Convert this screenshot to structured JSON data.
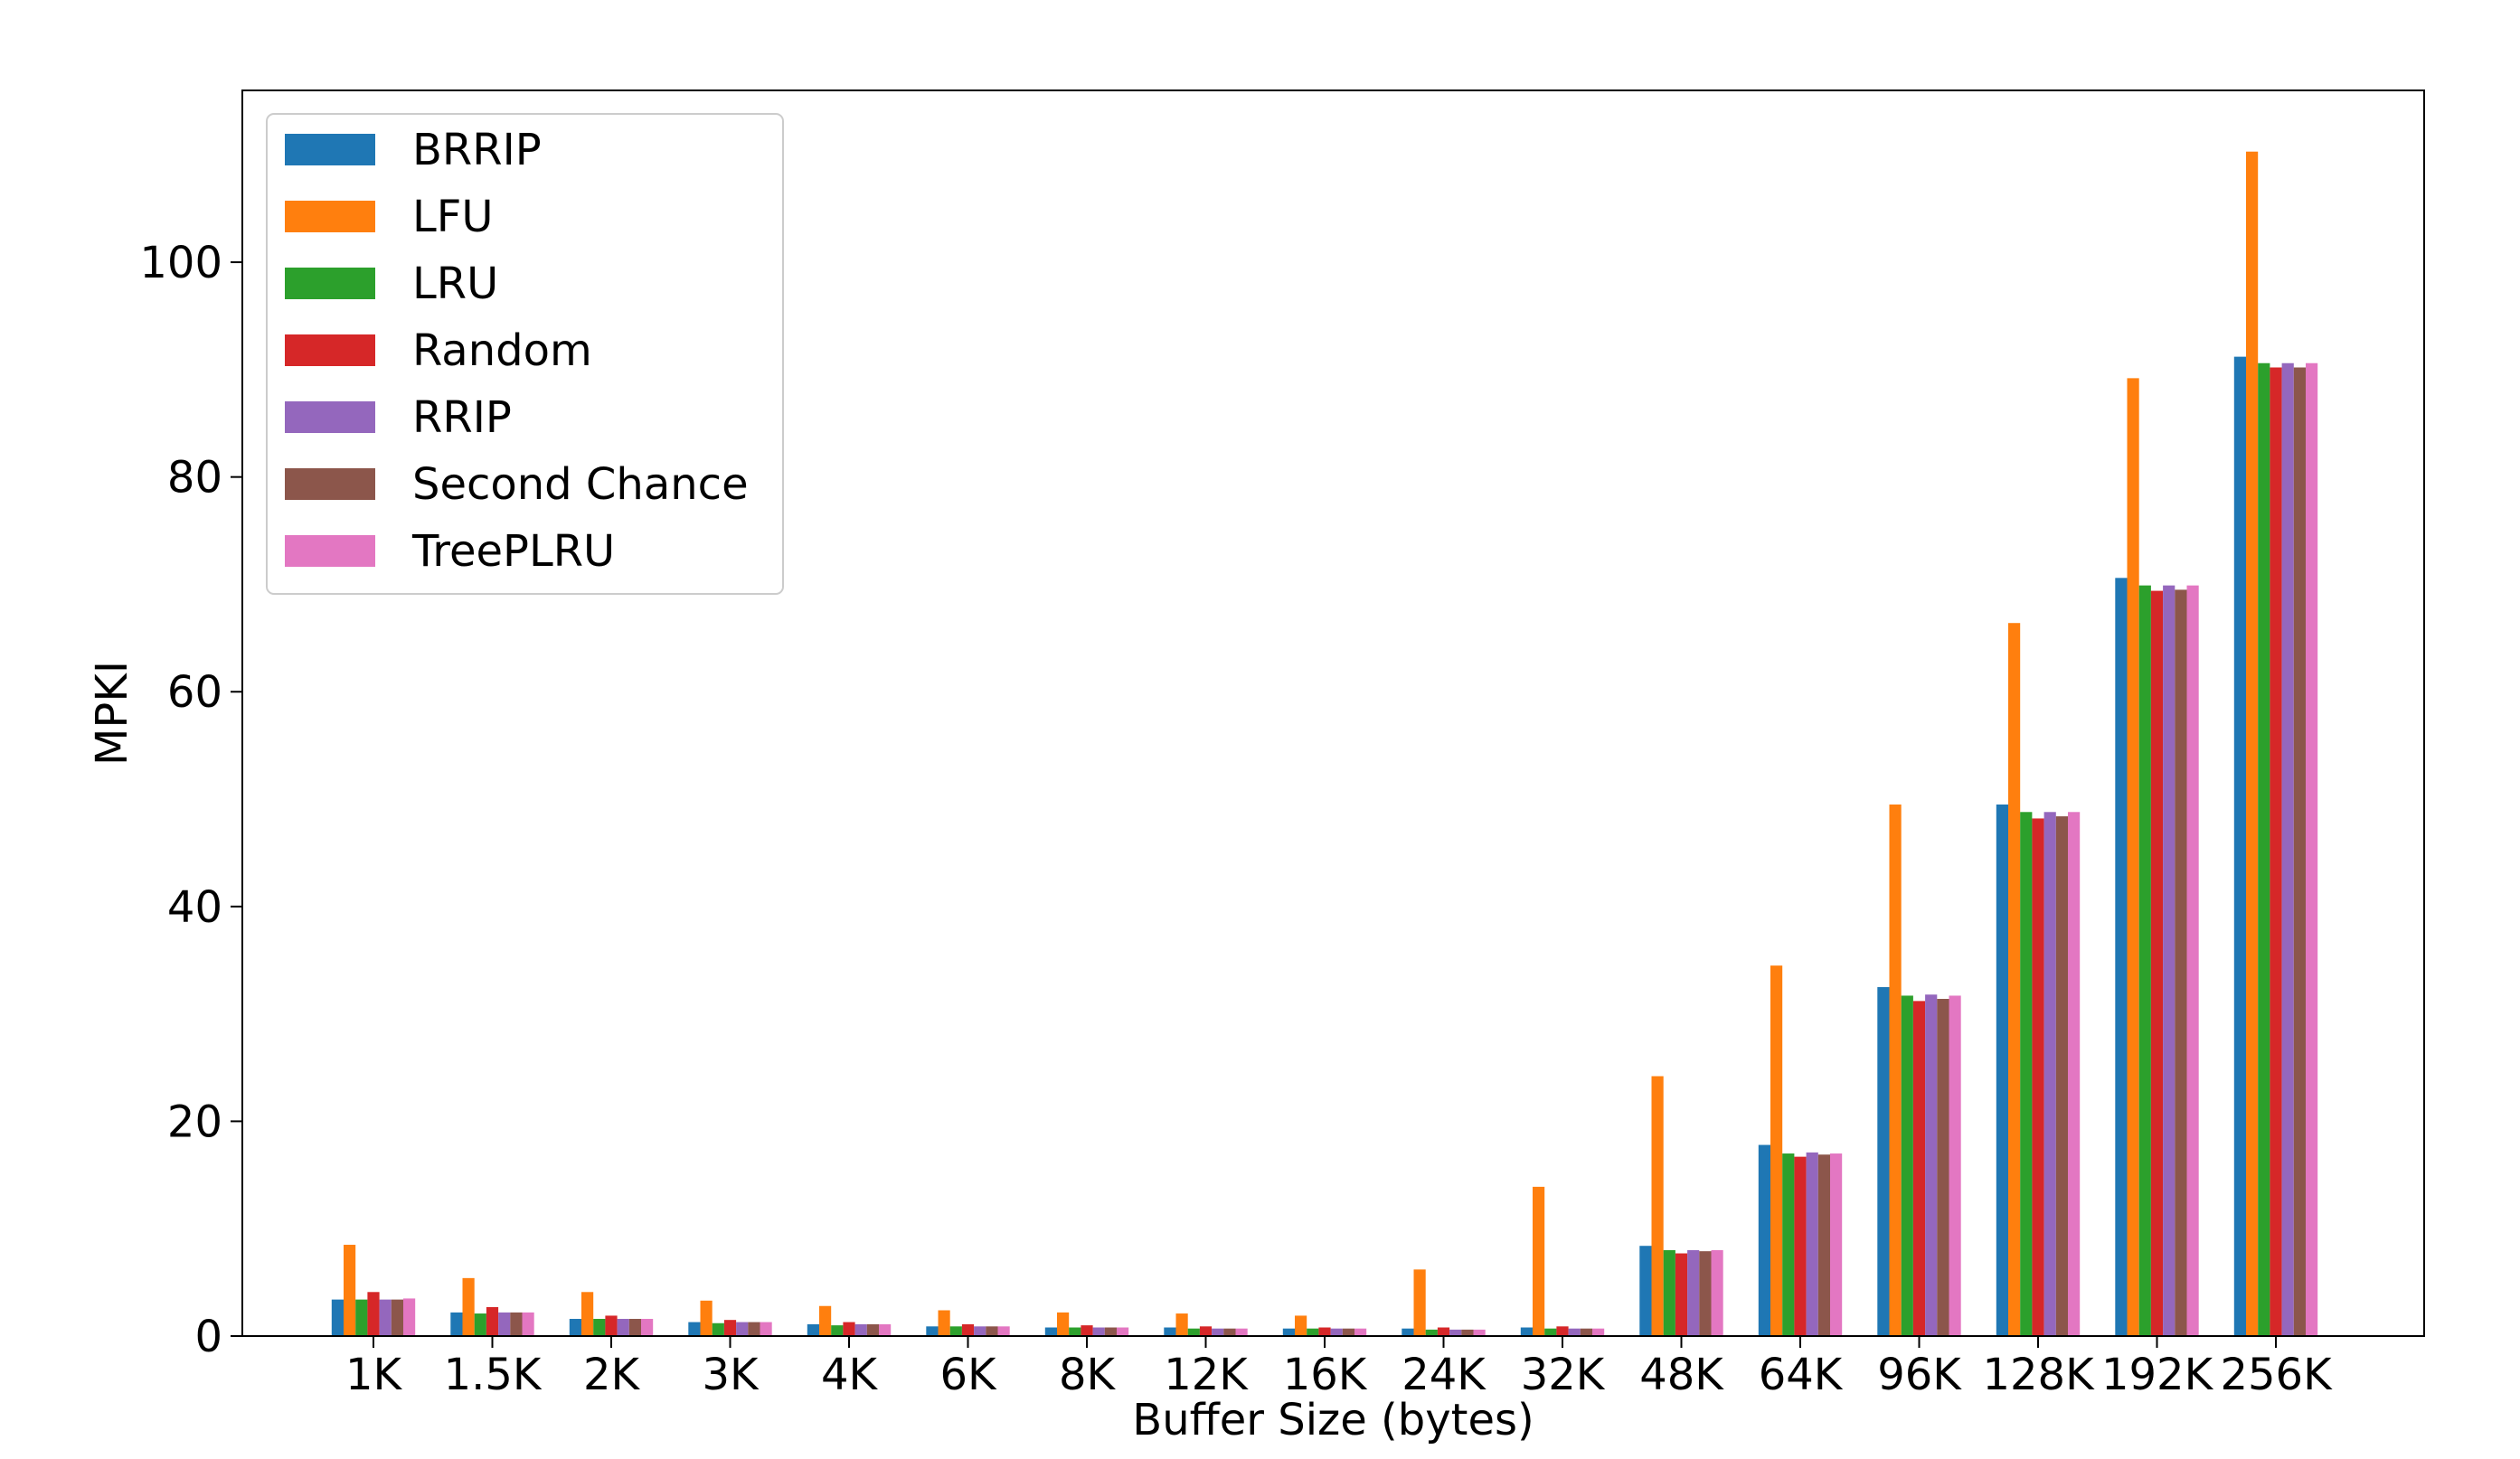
{
  "chart_data": {
    "type": "bar",
    "title": "",
    "xlabel": "Buffer Size (bytes)",
    "ylabel": "MPKI",
    "ylim": [
      0,
      116
    ],
    "yticks": [
      0,
      20,
      40,
      60,
      80,
      100
    ],
    "grid": false,
    "legend_position": "top-left",
    "categories": [
      "1K",
      "1.5K",
      "2K",
      "3K",
      "4K",
      "6K",
      "8K",
      "12K",
      "16K",
      "24K",
      "32K",
      "48K",
      "64K",
      "96K",
      "128K",
      "192K",
      "256K"
    ],
    "series": [
      {
        "name": "BRRIP",
        "color": "#1f77b4",
        "values": [
          3.4,
          2.2,
          1.6,
          1.3,
          1.1,
          0.9,
          0.8,
          0.8,
          0.7,
          0.7,
          0.8,
          8.4,
          17.8,
          32.5,
          49.5,
          70.6,
          91.2
        ]
      },
      {
        "name": "LFU",
        "color": "#ff7f0e",
        "values": [
          8.5,
          5.4,
          4.1,
          3.3,
          2.8,
          2.4,
          2.2,
          2.1,
          1.9,
          6.2,
          13.9,
          24.2,
          34.5,
          49.5,
          66.4,
          89.2,
          110.3
        ]
      },
      {
        "name": "LRU",
        "color": "#2ca02c",
        "values": [
          3.4,
          2.1,
          1.6,
          1.2,
          1.0,
          0.9,
          0.8,
          0.7,
          0.7,
          0.6,
          0.7,
          8.0,
          17.0,
          31.7,
          48.8,
          69.9,
          90.6
        ]
      },
      {
        "name": "Random",
        "color": "#d62728",
        "values": [
          4.1,
          2.7,
          1.9,
          1.5,
          1.3,
          1.1,
          1.0,
          0.9,
          0.8,
          0.8,
          0.9,
          7.7,
          16.7,
          31.2,
          48.2,
          69.4,
          90.2
        ]
      },
      {
        "name": "RRIP",
        "color": "#9467bd",
        "values": [
          3.4,
          2.2,
          1.6,
          1.3,
          1.1,
          0.9,
          0.8,
          0.7,
          0.7,
          0.6,
          0.7,
          8.0,
          17.1,
          31.8,
          48.8,
          69.9,
          90.6
        ]
      },
      {
        "name": "Second Chance",
        "color": "#8c564b",
        "values": [
          3.4,
          2.2,
          1.6,
          1.3,
          1.1,
          0.9,
          0.8,
          0.7,
          0.7,
          0.6,
          0.7,
          7.9,
          16.9,
          31.4,
          48.4,
          69.5,
          90.2
        ]
      },
      {
        "name": "TreePLRU",
        "color": "#e377c2",
        "values": [
          3.5,
          2.2,
          1.6,
          1.3,
          1.1,
          0.9,
          0.8,
          0.7,
          0.7,
          0.6,
          0.7,
          8.0,
          17.0,
          31.7,
          48.8,
          69.9,
          90.6
        ]
      }
    ]
  }
}
